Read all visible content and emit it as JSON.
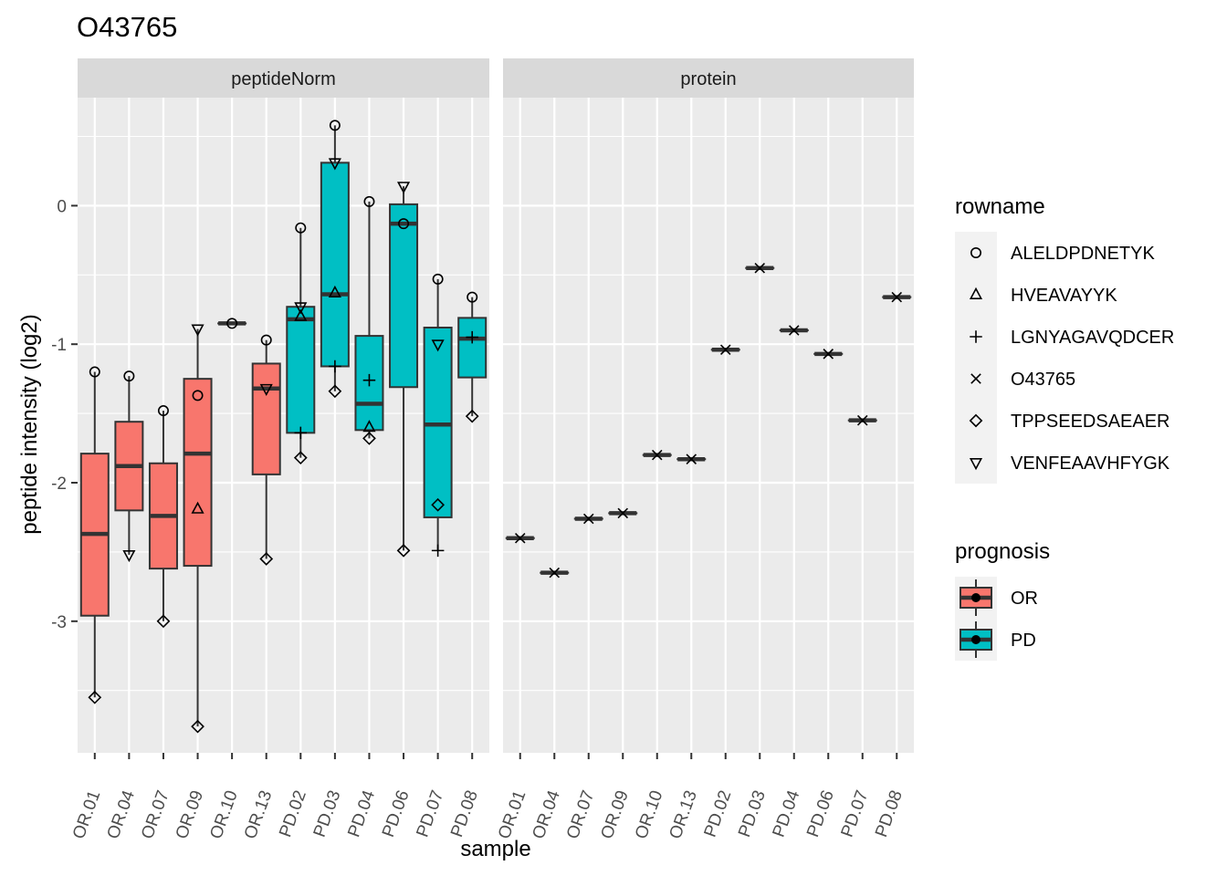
{
  "title": "O43765",
  "colors": {
    "OR": "#F8766D",
    "PD": "#00BFC4"
  },
  "chart_data": {
    "type": "boxplot",
    "xlabel": "sample",
    "ylabel": "peptide intensity (log2)",
    "ylim": [
      -3.95,
      0.78
    ],
    "yticks": [
      0,
      -1,
      -2,
      -3
    ],
    "samples": [
      "OR.01",
      "OR.04",
      "OR.07",
      "OR.09",
      "OR.10",
      "OR.13",
      "PD.02",
      "PD.03",
      "PD.04",
      "PD.06",
      "PD.07",
      "PD.08"
    ],
    "prognosis": [
      "OR",
      "OR",
      "OR",
      "OR",
      "OR",
      "OR",
      "PD",
      "PD",
      "PD",
      "PD",
      "PD",
      "PD"
    ],
    "shapes": {
      "ALELDPDNETYK": "circle",
      "HVEAVAYYK": "triangle",
      "LGNYAGAVQDCER": "plus",
      "O43765": "cross",
      "TPPSEEDSAEAER": "diamond",
      "VENFEAAVHFYGK": "triangle-down"
    },
    "facets": [
      {
        "name": "peptideNorm",
        "boxes": [
          {
            "sample": "OR.01",
            "lower": -3.55,
            "q1": -2.96,
            "median": -2.37,
            "q3": -1.79,
            "upper": -1.2
          },
          {
            "sample": "OR.04",
            "lower": -2.52,
            "q1": -2.2,
            "median": -1.88,
            "q3": -1.56,
            "upper": -1.23
          },
          {
            "sample": "OR.07",
            "lower": -3.0,
            "q1": -2.62,
            "median": -2.24,
            "q3": -1.86,
            "upper": -1.48
          },
          {
            "sample": "OR.09",
            "lower": -3.76,
            "q1": -2.6,
            "median": -1.79,
            "q3": -1.25,
            "upper": -0.89
          },
          {
            "sample": "OR.10",
            "lower": -0.85,
            "q1": -0.85,
            "median": -0.85,
            "q3": -0.85,
            "upper": -0.85
          },
          {
            "sample": "OR.13",
            "lower": -2.55,
            "q1": -1.94,
            "median": -1.32,
            "q3": -1.14,
            "upper": -0.97
          },
          {
            "sample": "PD.02",
            "lower": -1.82,
            "q1": -1.64,
            "median": -0.82,
            "q3": -0.73,
            "upper": -0.16
          },
          {
            "sample": "PD.03",
            "lower": -1.34,
            "q1": -1.16,
            "median": -0.64,
            "q3": 0.31,
            "upper": 0.58
          },
          {
            "sample": "PD.04",
            "lower": -1.68,
            "q1": -1.62,
            "median": -1.43,
            "q3": -0.94,
            "upper": 0.03
          },
          {
            "sample": "PD.06",
            "lower": -2.49,
            "q1": -1.31,
            "median": -0.13,
            "q3": 0.01,
            "upper": 0.14
          },
          {
            "sample": "PD.07",
            "lower": -2.49,
            "q1": -2.25,
            "median": -1.58,
            "q3": -0.88,
            "upper": -0.53
          },
          {
            "sample": "PD.08",
            "lower": -1.52,
            "q1": -1.24,
            "median": -0.96,
            "q3": -0.81,
            "upper": -0.66
          }
        ],
        "points": [
          {
            "sample": "OR.01",
            "peptide": "ALELDPDNETYK",
            "value": -1.2
          },
          {
            "sample": "OR.01",
            "peptide": "TPPSEEDSAEAER",
            "value": -3.55
          },
          {
            "sample": "OR.04",
            "peptide": "ALELDPDNETYK",
            "value": -1.23
          },
          {
            "sample": "OR.04",
            "peptide": "VENFEAAVHFYGK",
            "value": -2.52
          },
          {
            "sample": "OR.07",
            "peptide": "ALELDPDNETYK",
            "value": -1.48
          },
          {
            "sample": "OR.07",
            "peptide": "TPPSEEDSAEAER",
            "value": -3.0
          },
          {
            "sample": "OR.09",
            "peptide": "VENFEAAVHFYGK",
            "value": -0.89
          },
          {
            "sample": "OR.09",
            "peptide": "ALELDPDNETYK",
            "value": -1.37
          },
          {
            "sample": "OR.09",
            "peptide": "HVEAVAYYK",
            "value": -2.19
          },
          {
            "sample": "OR.09",
            "peptide": "TPPSEEDSAEAER",
            "value": -3.76
          },
          {
            "sample": "OR.10",
            "peptide": "ALELDPDNETYK",
            "value": -0.85
          },
          {
            "sample": "OR.13",
            "peptide": "ALELDPDNETYK",
            "value": -0.97
          },
          {
            "sample": "OR.13",
            "peptide": "VENFEAAVHFYGK",
            "value": -1.32
          },
          {
            "sample": "OR.13",
            "peptide": "TPPSEEDSAEAER",
            "value": -2.55
          },
          {
            "sample": "PD.02",
            "peptide": "ALELDPDNETYK",
            "value": -0.16
          },
          {
            "sample": "PD.02",
            "peptide": "VENFEAAVHFYGK",
            "value": -0.73
          },
          {
            "sample": "PD.02",
            "peptide": "HVEAVAYYK",
            "value": -0.8
          },
          {
            "sample": "PD.02",
            "peptide": "LGNYAGAVQDCER",
            "value": -1.64
          },
          {
            "sample": "PD.02",
            "peptide": "TPPSEEDSAEAER",
            "value": -1.82
          },
          {
            "sample": "PD.03",
            "peptide": "ALELDPDNETYK",
            "value": 0.58
          },
          {
            "sample": "PD.03",
            "peptide": "VENFEAAVHFYGK",
            "value": 0.31
          },
          {
            "sample": "PD.03",
            "peptide": "HVEAVAYYK",
            "value": -0.63
          },
          {
            "sample": "PD.03",
            "peptide": "LGNYAGAVQDCER",
            "value": -1.16
          },
          {
            "sample": "PD.03",
            "peptide": "TPPSEEDSAEAER",
            "value": -1.34
          },
          {
            "sample": "PD.04",
            "peptide": "ALELDPDNETYK",
            "value": 0.03
          },
          {
            "sample": "PD.04",
            "peptide": "LGNYAGAVQDCER",
            "value": -1.26
          },
          {
            "sample": "PD.04",
            "peptide": "HVEAVAYYK",
            "value": -1.6
          },
          {
            "sample": "PD.04",
            "peptide": "TPPSEEDSAEAER",
            "value": -1.68
          },
          {
            "sample": "PD.06",
            "peptide": "VENFEAAVHFYGK",
            "value": 0.14
          },
          {
            "sample": "PD.06",
            "peptide": "ALELDPDNETYK",
            "value": -0.13
          },
          {
            "sample": "PD.06",
            "peptide": "TPPSEEDSAEAER",
            "value": -2.49
          },
          {
            "sample": "PD.07",
            "peptide": "ALELDPDNETYK",
            "value": -0.53
          },
          {
            "sample": "PD.07",
            "peptide": "VENFEAAVHFYGK",
            "value": -1.0
          },
          {
            "sample": "PD.07",
            "peptide": "TPPSEEDSAEAER",
            "value": -2.16
          },
          {
            "sample": "PD.07",
            "peptide": "LGNYAGAVQDCER",
            "value": -2.49
          },
          {
            "sample": "PD.08",
            "peptide": "ALELDPDNETYK",
            "value": -0.66
          },
          {
            "sample": "PD.08",
            "peptide": "LGNYAGAVQDCER",
            "value": -0.95
          },
          {
            "sample": "PD.08",
            "peptide": "TPPSEEDSAEAER",
            "value": -1.52
          }
        ]
      },
      {
        "name": "protein",
        "boxes": [
          {
            "sample": "OR.01",
            "lower": -2.4,
            "q1": -2.4,
            "median": -2.4,
            "q3": -2.4,
            "upper": -2.4
          },
          {
            "sample": "OR.04",
            "lower": -2.65,
            "q1": -2.65,
            "median": -2.65,
            "q3": -2.65,
            "upper": -2.65
          },
          {
            "sample": "OR.07",
            "lower": -2.26,
            "q1": -2.26,
            "median": -2.26,
            "q3": -2.26,
            "upper": -2.26
          },
          {
            "sample": "OR.09",
            "lower": -2.22,
            "q1": -2.22,
            "median": -2.22,
            "q3": -2.22,
            "upper": -2.22
          },
          {
            "sample": "OR.10",
            "lower": -1.8,
            "q1": -1.8,
            "median": -1.8,
            "q3": -1.8,
            "upper": -1.8
          },
          {
            "sample": "OR.13",
            "lower": -1.83,
            "q1": -1.83,
            "median": -1.83,
            "q3": -1.83,
            "upper": -1.83
          },
          {
            "sample": "PD.02",
            "lower": -1.04,
            "q1": -1.04,
            "median": -1.04,
            "q3": -1.04,
            "upper": -1.04
          },
          {
            "sample": "PD.03",
            "lower": -0.45,
            "q1": -0.45,
            "median": -0.45,
            "q3": -0.45,
            "upper": -0.45
          },
          {
            "sample": "PD.04",
            "lower": -0.9,
            "q1": -0.9,
            "median": -0.9,
            "q3": -0.9,
            "upper": -0.9
          },
          {
            "sample": "PD.06",
            "lower": -1.07,
            "q1": -1.07,
            "median": -1.07,
            "q3": -1.07,
            "upper": -1.07
          },
          {
            "sample": "PD.07",
            "lower": -1.55,
            "q1": -1.55,
            "median": -1.55,
            "q3": -1.55,
            "upper": -1.55
          },
          {
            "sample": "PD.08",
            "lower": -0.66,
            "q1": -0.66,
            "median": -0.66,
            "q3": -0.66,
            "upper": -0.66
          }
        ],
        "points": [
          {
            "sample": "OR.01",
            "peptide": "O43765",
            "value": -2.4
          },
          {
            "sample": "OR.04",
            "peptide": "O43765",
            "value": -2.65
          },
          {
            "sample": "OR.07",
            "peptide": "O43765",
            "value": -2.26
          },
          {
            "sample": "OR.09",
            "peptide": "O43765",
            "value": -2.22
          },
          {
            "sample": "OR.10",
            "peptide": "O43765",
            "value": -1.8
          },
          {
            "sample": "OR.13",
            "peptide": "O43765",
            "value": -1.83
          },
          {
            "sample": "PD.02",
            "peptide": "O43765",
            "value": -1.04
          },
          {
            "sample": "PD.03",
            "peptide": "O43765",
            "value": -0.45
          },
          {
            "sample": "PD.04",
            "peptide": "O43765",
            "value": -0.9
          },
          {
            "sample": "PD.06",
            "peptide": "O43765",
            "value": -1.07
          },
          {
            "sample": "PD.07",
            "peptide": "O43765",
            "value": -1.55
          },
          {
            "sample": "PD.08",
            "peptide": "O43765",
            "value": -0.66
          }
        ]
      }
    ],
    "legends": [
      {
        "title": "rowname",
        "entries": [
          "ALELDPDNETYK",
          "HVEAVAYYK",
          "LGNYAGAVQDCER",
          "O43765",
          "TPPSEEDSAEAER",
          "VENFEAAVHFYGK"
        ]
      },
      {
        "title": "prognosis",
        "entries": [
          "OR",
          "PD"
        ]
      }
    ],
    "legend_position": "right",
    "grid": true
  }
}
